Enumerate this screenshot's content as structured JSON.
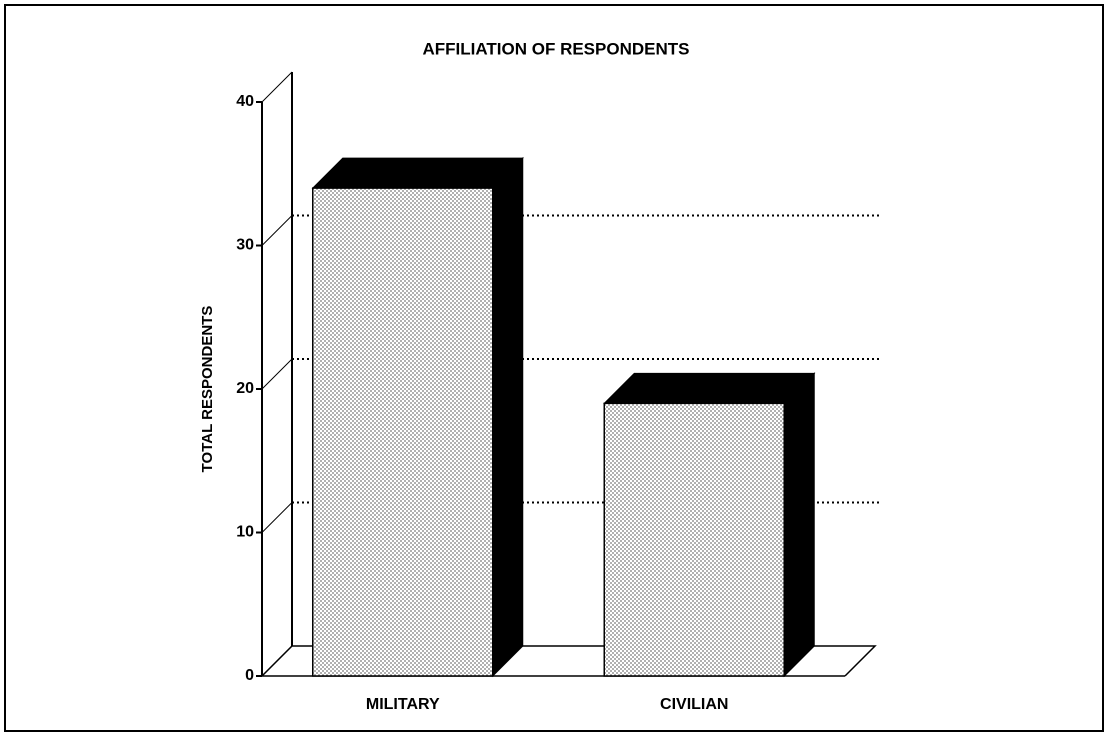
{
  "chart_data": {
    "type": "bar3d",
    "title": "AFFILIATION OF RESPONDENTS",
    "y_label": "TOTAL RESPONDENTS",
    "categories": [
      "MILITARY",
      "CIVILIAN"
    ],
    "values": [
      34,
      19
    ],
    "color": "#e6e6e6",
    "ylim": [
      0,
      40
    ],
    "yticks": [
      0,
      10,
      20,
      30,
      40
    ],
    "grid": true
  }
}
